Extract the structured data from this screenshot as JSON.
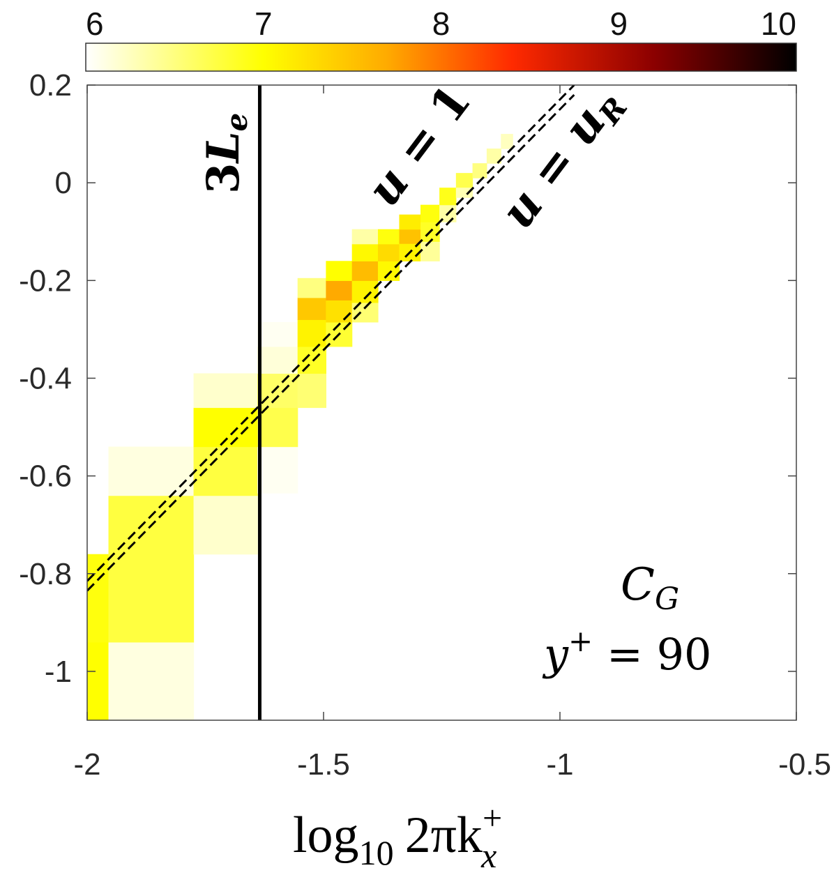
{
  "chart_data": {
    "type": "heatmap",
    "title": "",
    "xlabel_base": "log",
    "xlabel_subscript": "10",
    "xlabel_main": "2πk",
    "xlabel_sup": "+",
    "xlabel_sub": "x",
    "ylabel": "",
    "xlim": [
      -2,
      -0.5
    ],
    "ylim": [
      -1.1,
      0.2
    ],
    "xticks": [
      -2,
      -1.5,
      -1,
      -0.5
    ],
    "xtick_labels": [
      "-2",
      "-1.5",
      "-1",
      "-0.5"
    ],
    "yticks": [
      0.2,
      0,
      -0.2,
      -0.4,
      -0.6,
      -0.8,
      -1
    ],
    "ytick_labels": [
      "0.2",
      "0",
      "-0.2",
      "-0.4",
      "-0.6",
      "-0.8",
      "-1"
    ],
    "colorbar": {
      "range": [
        6,
        10
      ],
      "ticks": [
        6,
        7,
        8,
        9,
        10
      ],
      "tick_labels": [
        "6",
        "7",
        "8",
        "9",
        "10"
      ],
      "colormap": [
        {
          "v": 6,
          "color": "#ffffff"
        },
        {
          "v": 7,
          "color": "#ffff00"
        },
        {
          "v": 7.7,
          "color": "#ffaa00"
        },
        {
          "v": 8.4,
          "color": "#ff2a00"
        },
        {
          "v": 9.2,
          "color": "#8b0000"
        },
        {
          "v": 10,
          "color": "#000000"
        }
      ]
    },
    "cells": [
      {
        "x0": -2.0,
        "x1": -1.955,
        "y0": -1.1,
        "y1": -0.94,
        "v": 7.0
      },
      {
        "x0": -2.0,
        "x1": -1.955,
        "y0": -0.94,
        "y1": -0.76,
        "v": 6.95
      },
      {
        "x0": -1.955,
        "x1": -1.775,
        "y0": -1.1,
        "y1": -0.94,
        "v": 6.12
      },
      {
        "x0": -1.955,
        "x1": -1.775,
        "y0": -0.94,
        "y1": -0.64,
        "v": 6.75
      },
      {
        "x0": -1.955,
        "x1": -1.775,
        "y0": -0.64,
        "y1": -0.54,
        "v": 6.12
      },
      {
        "x0": -1.775,
        "x1": -1.64,
        "y0": -0.76,
        "y1": -0.64,
        "v": 6.2
      },
      {
        "x0": -1.775,
        "x1": -1.64,
        "y0": -0.64,
        "y1": -0.54,
        "v": 6.75
      },
      {
        "x0": -1.775,
        "x1": -1.64,
        "y0": -0.54,
        "y1": -0.46,
        "v": 7.0
      },
      {
        "x0": -1.775,
        "x1": -1.64,
        "y0": -0.46,
        "y1": -0.39,
        "v": 6.2
      },
      {
        "x0": -1.64,
        "x1": -1.555,
        "y0": -0.635,
        "y1": -0.54,
        "v": 6.05
      },
      {
        "x0": -1.64,
        "x1": -1.555,
        "y0": -0.54,
        "y1": -0.46,
        "v": 6.7
      },
      {
        "x0": -1.64,
        "x1": -1.555,
        "y0": -0.46,
        "y1": -0.39,
        "v": 6.6
      },
      {
        "x0": -1.64,
        "x1": -1.555,
        "y0": -0.39,
        "y1": -0.335,
        "v": 6.15
      },
      {
        "x0": -1.64,
        "x1": -1.555,
        "y0": -0.335,
        "y1": -0.285,
        "v": 6.05
      },
      {
        "x0": -1.555,
        "x1": -1.495,
        "y0": -0.46,
        "y1": -0.39,
        "v": 6.55
      },
      {
        "x0": -1.555,
        "x1": -1.495,
        "y0": -0.39,
        "y1": -0.335,
        "v": 6.85
      },
      {
        "x0": -1.555,
        "x1": -1.495,
        "y0": -0.335,
        "y1": -0.28,
        "v": 7.1
      },
      {
        "x0": -1.555,
        "x1": -1.495,
        "y0": -0.28,
        "y1": -0.235,
        "v": 7.45
      },
      {
        "x0": -1.555,
        "x1": -1.495,
        "y0": -0.235,
        "y1": -0.195,
        "v": 6.5
      },
      {
        "x0": -1.495,
        "x1": -1.44,
        "y0": -0.335,
        "y1": -0.285,
        "v": 6.8
      },
      {
        "x0": -1.495,
        "x1": -1.44,
        "y0": -0.285,
        "y1": -0.24,
        "v": 7.25
      },
      {
        "x0": -1.495,
        "x1": -1.44,
        "y0": -0.24,
        "y1": -0.2,
        "v": 7.7
      },
      {
        "x0": -1.495,
        "x1": -1.44,
        "y0": -0.2,
        "y1": -0.16,
        "v": 7.0
      },
      {
        "x0": -1.44,
        "x1": -1.385,
        "y0": -0.285,
        "y1": -0.245,
        "v": 6.55
      },
      {
        "x0": -1.44,
        "x1": -1.385,
        "y0": -0.245,
        "y1": -0.2,
        "v": 7.1
      },
      {
        "x0": -1.44,
        "x1": -1.385,
        "y0": -0.2,
        "y1": -0.16,
        "v": 7.55
      },
      {
        "x0": -1.44,
        "x1": -1.385,
        "y0": -0.16,
        "y1": -0.125,
        "v": 7.05
      },
      {
        "x0": -1.44,
        "x1": -1.385,
        "y0": -0.125,
        "y1": -0.095,
        "v": 6.35
      },
      {
        "x0": -1.385,
        "x1": -1.34,
        "y0": -0.2,
        "y1": -0.16,
        "v": 7.05
      },
      {
        "x0": -1.385,
        "x1": -1.34,
        "y0": -0.16,
        "y1": -0.125,
        "v": 7.3
      },
      {
        "x0": -1.385,
        "x1": -1.34,
        "y0": -0.125,
        "y1": -0.095,
        "v": 6.95
      },
      {
        "x0": -1.34,
        "x1": -1.295,
        "y0": -0.125,
        "y1": -0.095,
        "v": 7.5
      },
      {
        "x0": -1.34,
        "x1": -1.295,
        "y0": -0.095,
        "y1": -0.065,
        "v": 7.15
      },
      {
        "x0": -1.34,
        "x1": -1.295,
        "y0": -0.16,
        "y1": -0.125,
        "v": 7.1
      },
      {
        "x0": -1.295,
        "x1": -1.255,
        "y0": -0.16,
        "y1": -0.12,
        "v": 6.4
      },
      {
        "x0": -1.295,
        "x1": -1.255,
        "y0": -0.12,
        "y1": -0.08,
        "v": 6.85
      },
      {
        "x0": -1.295,
        "x1": -1.255,
        "y0": -0.08,
        "y1": -0.045,
        "v": 6.95
      },
      {
        "x0": -1.255,
        "x1": -1.22,
        "y0": -0.08,
        "y1": -0.045,
        "v": 6.35
      },
      {
        "x0": -1.255,
        "x1": -1.22,
        "y0": -0.045,
        "y1": -0.01,
        "v": 6.9
      },
      {
        "x0": -1.22,
        "x1": -1.185,
        "y0": -0.01,
        "y1": 0.02,
        "v": 6.7
      },
      {
        "x0": -1.22,
        "x1": -1.185,
        "y0": -0.03,
        "y1": -0.01,
        "v": 6.3
      },
      {
        "x0": -1.185,
        "x1": -1.155,
        "y0": 0.01,
        "y1": 0.04,
        "v": 6.5
      },
      {
        "x0": -1.155,
        "x1": -1.125,
        "y0": 0.04,
        "y1": 0.07,
        "v": 6.35
      },
      {
        "x0": -1.125,
        "x1": -1.1,
        "y0": 0.07,
        "y1": 0.1,
        "v": 6.25
      }
    ],
    "vertical_line": {
      "x": -1.635,
      "label_num": "3",
      "label_var": "L",
      "label_sub": "e"
    },
    "lines": [
      {
        "name": "u = 1",
        "style": "dashed",
        "x": [
          -2,
          -0.97
        ],
        "y": [
          -0.815,
          0.2
        ],
        "label_var": "u",
        "label_eq": " = 1"
      },
      {
        "name": "u = u_R",
        "style": "dashed",
        "x": [
          -2,
          -0.97
        ],
        "y": [
          -0.835,
          0.18
        ],
        "label_var": "u",
        "label_eq": " = ",
        "label_rvar": "u",
        "label_rsub": "R"
      }
    ],
    "annotations": [
      {
        "main": "C",
        "sub": "G"
      },
      {
        "main": "y",
        "sup": "+",
        "rest": " = 90"
      }
    ]
  }
}
